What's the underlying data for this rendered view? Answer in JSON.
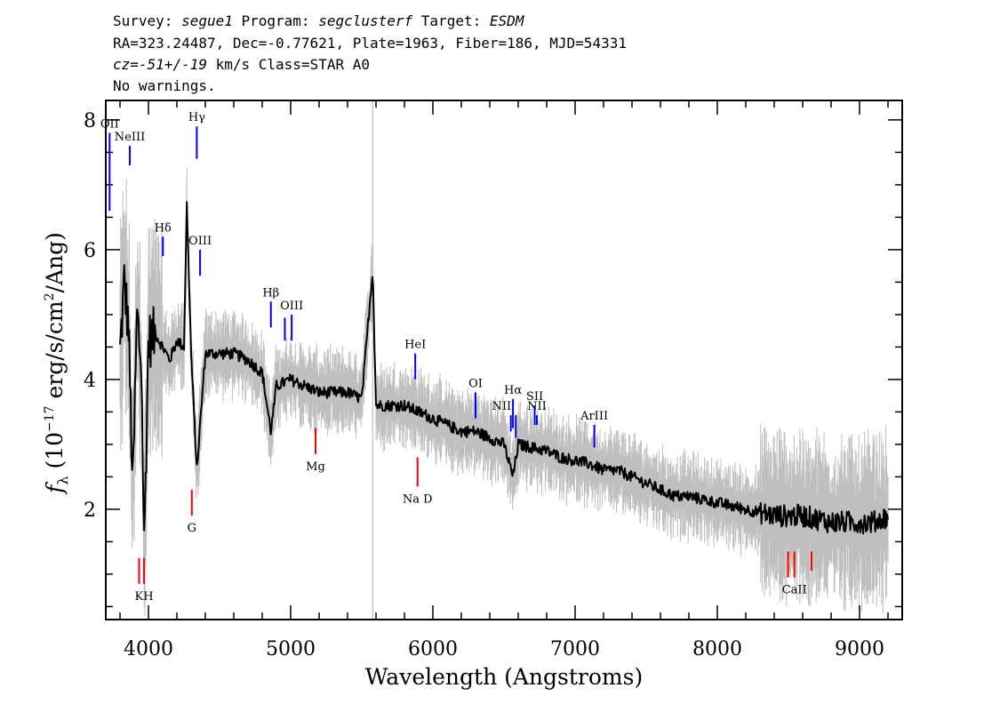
{
  "header": {
    "line1": {
      "survey_label": "Survey: ",
      "survey": "segue1",
      "program_label": " Program: ",
      "program": "segclusterf",
      "target_label": " Target: ",
      "target": "ESDM"
    },
    "line2": "RA=323.24487, Dec=-0.77621, Plate=1963, Fiber=186, MJD=54331",
    "line3": {
      "cz_label": "cz=",
      "cz_value": "-51+/-19",
      "rest": " km/s Class=STAR A0"
    },
    "line4": "No warnings."
  },
  "colors": {
    "flux": "#000000",
    "error": "#bfbfbf",
    "emission": "#0000ff",
    "absorption": "#ff0000",
    "sky": "#808080"
  },
  "chart_data": {
    "type": "line",
    "xlabel": "Wavelength (Angstroms)",
    "ylabel": {
      "prefix": "f",
      "sub": "λ",
      "unit_a": " (10",
      "exp1": "−17",
      "unit_b": " erg/s/cm",
      "exp2": "2",
      "unit_c": "/Ang)"
    },
    "xlim": [
      3700,
      9300
    ],
    "ylim": [
      0.3,
      8.3
    ],
    "x_ticks": [
      4000,
      5000,
      6000,
      7000,
      8000,
      9000
    ],
    "y_ticks": [
      2,
      4,
      6,
      8
    ],
    "x_tick_labels": [
      "4000",
      "5000",
      "6000",
      "7000",
      "8000",
      "9000"
    ],
    "y_tick_labels": [
      "2",
      "4",
      "6",
      "8"
    ],
    "series": [
      {
        "role": "flux",
        "x": [
          3800,
          3830,
          3860,
          3890,
          3920,
          3950,
          3970,
          4000,
          4050,
          4100,
          4150,
          4200,
          4250,
          4270,
          4300,
          4340,
          4400,
          4500,
          4600,
          4700,
          4800,
          4861,
          4900,
          5000,
          5100,
          5200,
          5300,
          5400,
          5500,
          5577,
          5600,
          5700,
          5800,
          5900,
          6000,
          6100,
          6200,
          6300,
          6400,
          6500,
          6563,
          6600,
          6700,
          6800,
          6900,
          7000,
          7100,
          7200,
          7300,
          7400,
          7500,
          7600,
          7700,
          7800,
          7900,
          8000,
          8100,
          8200,
          8300,
          8400,
          8500,
          8600,
          8700,
          8800,
          8900,
          9000,
          9100,
          9200
        ],
        "y": [
          4.4,
          5.5,
          4.8,
          2.3,
          5.0,
          4.2,
          1.4,
          4.6,
          4.7,
          4.5,
          4.3,
          4.6,
          4.5,
          6.7,
          4.4,
          2.6,
          4.4,
          4.4,
          4.4,
          4.3,
          4.1,
          3.2,
          3.9,
          4.0,
          3.9,
          3.8,
          3.8,
          3.8,
          3.7,
          5.7,
          3.6,
          3.6,
          3.6,
          3.5,
          3.4,
          3.3,
          3.2,
          3.2,
          3.1,
          3.0,
          2.5,
          3.0,
          2.95,
          2.9,
          2.8,
          2.75,
          2.7,
          2.6,
          2.6,
          2.5,
          2.4,
          2.3,
          2.2,
          2.2,
          2.15,
          2.1,
          2.05,
          2.0,
          1.95,
          1.9,
          1.9,
          1.9,
          1.85,
          1.8,
          1.8,
          1.8,
          1.8,
          1.9
        ]
      }
    ],
    "line_markers": [
      {
        "label": "OII",
        "wave": 3727,
        "kind": "emission",
        "top": 7.8,
        "bottom": 6.6,
        "label_pos": "above"
      },
      {
        "label": "NeIII",
        "wave": 3869,
        "kind": "emission",
        "top": 7.6,
        "bottom": 7.3,
        "label_pos": "above"
      },
      {
        "label": "Hγ",
        "wave": 4340,
        "kind": "emission",
        "top": 7.9,
        "bottom": 7.4,
        "label_pos": "above"
      },
      {
        "label": "Hδ",
        "wave": 4102,
        "kind": "emission",
        "top": 6.2,
        "bottom": 5.9,
        "label_pos": "above"
      },
      {
        "label": "OIII",
        "wave": 4363,
        "kind": "emission",
        "top": 6.0,
        "bottom": 5.6,
        "label_pos": "above"
      },
      {
        "label": "Hβ",
        "wave": 4861,
        "kind": "emission",
        "top": 5.2,
        "bottom": 4.8,
        "label_pos": "above"
      },
      {
        "label": "OIII",
        "wave": 4959,
        "kind": "emission",
        "top": 4.95,
        "bottom": 4.6,
        "label_pos": "none"
      },
      {
        "label": "OIII",
        "wave": 5007,
        "kind": "emission",
        "top": 5.0,
        "bottom": 4.6,
        "label_pos": "above"
      },
      {
        "label": "HeI",
        "wave": 5876,
        "kind": "emission",
        "top": 4.4,
        "bottom": 4.0,
        "label_pos": "above"
      },
      {
        "label": "OI",
        "wave": 6300,
        "kind": "emission",
        "top": 3.8,
        "bottom": 3.4,
        "label_pos": "above"
      },
      {
        "label": "NII",
        "wave": 6548,
        "kind": "emission",
        "top": 3.45,
        "bottom": 3.2,
        "label_pos": "none"
      },
      {
        "label": "Hα",
        "wave": 6563,
        "kind": "emission",
        "top": 3.7,
        "bottom": 3.25,
        "label_pos": "above"
      },
      {
        "label": "NII",
        "wave": 6583,
        "kind": "emission",
        "top": 3.45,
        "bottom": 3.1,
        "label_pos": "above_left"
      },
      {
        "label": "SII",
        "wave": 6716,
        "kind": "emission",
        "top": 3.6,
        "bottom": 3.3,
        "label_pos": "above"
      },
      {
        "label": "NII",
        "wave": 6731,
        "kind": "emission",
        "top": 3.45,
        "bottom": 3.3,
        "label_pos": "above"
      },
      {
        "label": "ArIII",
        "wave": 7135,
        "kind": "emission",
        "top": 3.3,
        "bottom": 2.95,
        "label_pos": "above"
      },
      {
        "label": "K",
        "wave": 3934,
        "kind": "absorption",
        "top": 1.25,
        "bottom": 0.85,
        "label_pos": "none"
      },
      {
        "label": "KH",
        "wave": 3969,
        "kind": "absorption",
        "top": 1.25,
        "bottom": 0.85,
        "label_pos": "below"
      },
      {
        "label": "G",
        "wave": 4305,
        "kind": "absorption",
        "top": 2.3,
        "bottom": 1.9,
        "label_pos": "below"
      },
      {
        "label": "Mg",
        "wave": 5175,
        "kind": "absorption",
        "top": 3.25,
        "bottom": 2.85,
        "label_pos": "below"
      },
      {
        "label": "Na D",
        "wave": 5892,
        "kind": "absorption",
        "top": 2.8,
        "bottom": 2.35,
        "label_pos": "below"
      },
      {
        "label": "CaII",
        "wave": 8498,
        "kind": "absorption",
        "top": 1.35,
        "bottom": 0.95,
        "label_pos": "none"
      },
      {
        "label": "CaII",
        "wave": 8542,
        "kind": "absorption",
        "top": 1.35,
        "bottom": 0.95,
        "label_pos": "below"
      },
      {
        "label": "CaII",
        "wave": 8662,
        "kind": "absorption",
        "top": 1.35,
        "bottom": 1.05,
        "label_pos": "none"
      }
    ],
    "sky_line": {
      "wave": 5577
    }
  }
}
